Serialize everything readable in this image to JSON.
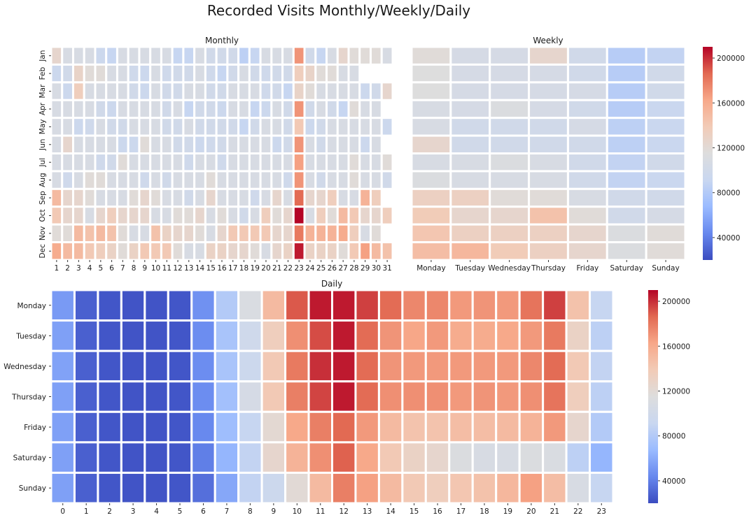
{
  "figure": {
    "suptitle": "Recorded Visits Monthly/Weekly/Daily",
    "colormap": "coolwarm",
    "colormap_stops": [
      "#3b4cc0",
      "#6788ee",
      "#9abbff",
      "#c9d7f0",
      "#dddddd",
      "#f2cbb7",
      "#f7a889",
      "#e26952",
      "#b40426"
    ]
  },
  "chart_data": [
    {
      "type": "heatmap",
      "title": "Monthly",
      "x_labels": [
        "1",
        "2",
        "3",
        "4",
        "5",
        "6",
        "7",
        "8",
        "9",
        "10",
        "11",
        "12",
        "13",
        "14",
        "15",
        "16",
        "17",
        "18",
        "19",
        "20",
        "21",
        "22",
        "23",
        "24",
        "25",
        "26",
        "27",
        "28",
        "29",
        "30",
        "31"
      ],
      "y_labels": [
        "Jan",
        "Feb",
        "Mar",
        "Apr",
        "May",
        "Jun",
        "Jul",
        "Aug",
        "Sep",
        "Oct",
        "Nov",
        "Dec"
      ],
      "vmin": 20000,
      "vmax": 210000,
      "values": [
        [
          125000,
          108000,
          108000,
          108000,
          95000,
          90000,
          108000,
          108000,
          108000,
          108000,
          108000,
          90000,
          90000,
          108000,
          100000,
          100000,
          100000,
          85000,
          90000,
          108000,
          108000,
          108000,
          170000,
          100000,
          90000,
          108000,
          125000,
          118000,
          118000,
          118000,
          108000
        ],
        [
          95000,
          100000,
          128000,
          118000,
          118000,
          108000,
          108000,
          98000,
          95000,
          108000,
          98000,
          100000,
          100000,
          108000,
          98000,
          90000,
          100000,
          108000,
          100000,
          98000,
          100000,
          100000,
          135000,
          128000,
          118000,
          118000,
          108000,
          108000,
          null,
          null,
          null
        ],
        [
          108000,
          95000,
          135000,
          108000,
          108000,
          108000,
          108000,
          100000,
          95000,
          108000,
          100000,
          100000,
          108000,
          108000,
          100000,
          100000,
          108000,
          108000,
          108000,
          98000,
          100000,
          90000,
          128000,
          118000,
          108000,
          108000,
          108000,
          108000,
          95000,
          100000,
          125000
        ],
        [
          108000,
          108000,
          108000,
          108000,
          100000,
          95000,
          108000,
          108000,
          108000,
          108000,
          100000,
          108000,
          90000,
          100000,
          100000,
          95000,
          108000,
          108000,
          90000,
          95000,
          108000,
          100000,
          170000,
          100000,
          108000,
          100000,
          90000,
          118000,
          108000,
          108000,
          null
        ],
        [
          108000,
          108000,
          95000,
          98000,
          108000,
          100000,
          100000,
          108000,
          108000,
          108000,
          100000,
          100000,
          108000,
          100000,
          100000,
          100000,
          100000,
          90000,
          100000,
          108000,
          108000,
          100000,
          140000,
          95000,
          100000,
          108000,
          108000,
          108000,
          108000,
          108000,
          95000
        ],
        [
          108000,
          125000,
          108000,
          108000,
          108000,
          108000,
          95000,
          95000,
          118000,
          108000,
          108000,
          100000,
          100000,
          95000,
          98000,
          100000,
          108000,
          108000,
          108000,
          108000,
          95000,
          100000,
          170000,
          108000,
          100000,
          108000,
          108000,
          108000,
          95000,
          108000,
          null
        ],
        [
          108000,
          108000,
          108000,
          108000,
          98000,
          100000,
          118000,
          108000,
          108000,
          108000,
          108000,
          108000,
          98000,
          108000,
          108000,
          98000,
          108000,
          108000,
          108000,
          108000,
          108000,
          108000,
          165000,
          108000,
          108000,
          108000,
          108000,
          118000,
          108000,
          108000,
          118000
        ],
        [
          108000,
          98000,
          108000,
          118000,
          118000,
          108000,
          108000,
          108000,
          98000,
          108000,
          100000,
          108000,
          108000,
          108000,
          118000,
          108000,
          108000,
          108000,
          108000,
          108000,
          108000,
          98000,
          170000,
          108000,
          100000,
          108000,
          108000,
          118000,
          108000,
          108000,
          100000
        ],
        [
          150000,
          125000,
          125000,
          118000,
          108000,
          108000,
          108000,
          118000,
          125000,
          118000,
          108000,
          108000,
          100000,
          108000,
          125000,
          108000,
          108000,
          108000,
          98000,
          108000,
          125000,
          108000,
          185000,
          125000,
          125000,
          135000,
          108000,
          108000,
          155000,
          135000,
          null
        ],
        [
          140000,
          125000,
          125000,
          108000,
          125000,
          135000,
          125000,
          125000,
          125000,
          108000,
          108000,
          118000,
          118000,
          125000,
          108000,
          118000,
          108000,
          100000,
          108000,
          135000,
          118000,
          125000,
          210000,
          108000,
          135000,
          118000,
          150000,
          140000,
          125000,
          125000,
          135000
        ],
        [
          118000,
          118000,
          150000,
          145000,
          150000,
          145000,
          118000,
          108000,
          108000,
          145000,
          130000,
          125000,
          125000,
          118000,
          108000,
          125000,
          140000,
          140000,
          140000,
          140000,
          125000,
          125000,
          180000,
          155000,
          155000,
          155000,
          160000,
          135000,
          108000,
          118000,
          null
        ],
        [
          160000,
          150000,
          150000,
          140000,
          135000,
          130000,
          118000,
          130000,
          140000,
          140000,
          140000,
          118000,
          108000,
          108000,
          130000,
          130000,
          125000,
          125000,
          118000,
          108000,
          125000,
          130000,
          205000,
          130000,
          130000,
          130000,
          118000,
          140000,
          165000,
          150000,
          145000
        ]
      ]
    },
    {
      "type": "heatmap",
      "title": "Weekly",
      "x_labels": [
        "Monday",
        "Tuesday",
        "Wednesday",
        "Thursday",
        "Friday",
        "Saturday",
        "Sunday"
      ],
      "y_labels": [
        "Jan",
        "Feb",
        "Mar",
        "Apr",
        "May",
        "Jun",
        "Jul",
        "Aug",
        "Sep",
        "Oct",
        "Nov",
        "Dec"
      ],
      "vmin": 20000,
      "vmax": 210000,
      "values": [
        [
          118000,
          105000,
          105000,
          125000,
          100000,
          82000,
          88000
        ],
        [
          115000,
          105000,
          105000,
          105000,
          100000,
          82000,
          100000
        ],
        [
          115000,
          105000,
          105000,
          105000,
          105000,
          82000,
          100000
        ],
        [
          108000,
          105000,
          112000,
          105000,
          100000,
          82000,
          92000
        ],
        [
          108000,
          100000,
          100000,
          100000,
          105000,
          85000,
          92000
        ],
        [
          125000,
          100000,
          100000,
          100000,
          100000,
          85000,
          92000
        ],
        [
          108000,
          108000,
          112000,
          108000,
          100000,
          88000,
          100000
        ],
        [
          112000,
          108000,
          108000,
          108000,
          100000,
          88000,
          92000
        ],
        [
          132000,
          132000,
          118000,
          118000,
          108000,
          100000,
          100000
        ],
        [
          138000,
          125000,
          125000,
          145000,
          118000,
          100000,
          105000
        ],
        [
          142000,
          132000,
          132000,
          132000,
          125000,
          112000,
          118000
        ],
        [
          148000,
          152000,
          138000,
          132000,
          125000,
          112000,
          118000
        ]
      ]
    },
    {
      "type": "heatmap",
      "title": "Daily",
      "x_labels": [
        "0",
        "1",
        "2",
        "3",
        "4",
        "5",
        "6",
        "7",
        "8",
        "9",
        "10",
        "11",
        "12",
        "13",
        "14",
        "15",
        "16",
        "17",
        "18",
        "19",
        "20",
        "21",
        "22",
        "23"
      ],
      "y_labels": [
        "Monday",
        "Tuesday",
        "Wednesday",
        "Thursday",
        "Friday",
        "Saturday",
        "Sunday"
      ],
      "vmin": 20000,
      "vmax": 210000,
      "values": [
        [
          52000,
          28000,
          24000,
          23000,
          23000,
          24000,
          48000,
          80000,
          110000,
          150000,
          190000,
          205000,
          205000,
          196000,
          185000,
          175000,
          175000,
          168000,
          170000,
          168000,
          182000,
          196000,
          145000,
          90000
        ],
        [
          55000,
          28000,
          24000,
          23000,
          23000,
          24000,
          46000,
          75000,
          98000,
          135000,
          172000,
          193000,
          205000,
          185000,
          170000,
          163000,
          168000,
          160000,
          160000,
          162000,
          168000,
          180000,
          130000,
          85000
        ],
        [
          56000,
          28000,
          24000,
          23000,
          23000,
          24000,
          46000,
          75000,
          95000,
          140000,
          180000,
          200000,
          205000,
          185000,
          170000,
          168000,
          168000,
          168000,
          168000,
          168000,
          175000,
          185000,
          140000,
          88000
        ],
        [
          55000,
          28000,
          24000,
          23000,
          23000,
          24000,
          46000,
          72000,
          105000,
          140000,
          178000,
          195000,
          205000,
          185000,
          172000,
          172000,
          172000,
          168000,
          170000,
          168000,
          172000,
          182000,
          135000,
          85000
        ],
        [
          55000,
          28000,
          24000,
          23000,
          23000,
          24000,
          44000,
          70000,
          90000,
          122000,
          162000,
          178000,
          186000,
          168000,
          150000,
          144000,
          144000,
          148000,
          148000,
          150000,
          155000,
          168000,
          125000,
          80000
        ],
        [
          55000,
          28000,
          24000,
          23000,
          23000,
          24000,
          40000,
          65000,
          88000,
          125000,
          155000,
          172000,
          188000,
          162000,
          140000,
          130000,
          125000,
          112000,
          108000,
          108000,
          112000,
          110000,
          85000,
          65000
        ],
        [
          55000,
          28000,
          24000,
          23000,
          23000,
          24000,
          34000,
          58000,
          88000,
          95000,
          120000,
          150000,
          178000,
          165000,
          150000,
          140000,
          135000,
          142000,
          145000,
          152000,
          165000,
          148000,
          108000,
          90000
        ]
      ]
    }
  ],
  "colorbars": [
    {
      "ticks": [
        40000,
        80000,
        120000,
        160000,
        200000
      ]
    },
    {
      "ticks": [
        40000,
        80000,
        120000,
        160000,
        200000
      ]
    }
  ]
}
